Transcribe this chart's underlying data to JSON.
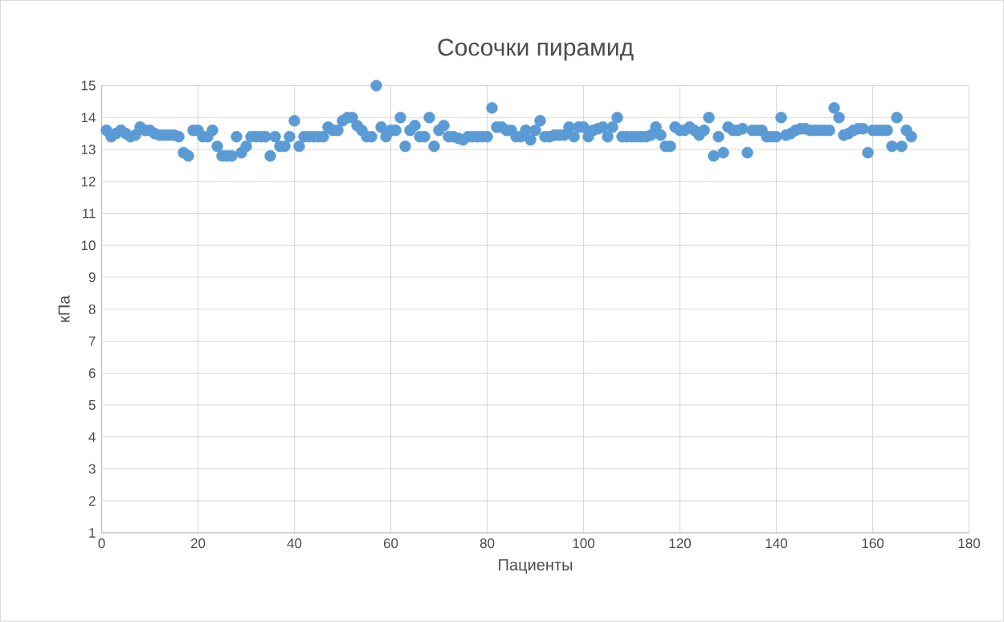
{
  "chart_data": {
    "type": "scatter",
    "title": "Сосочки пирамид",
    "xlabel": "Пациенты",
    "ylabel": "кПа",
    "x": [
      1,
      2,
      3,
      4,
      5,
      6,
      7,
      8,
      9,
      10,
      11,
      12,
      13,
      14,
      15,
      16,
      17,
      18,
      19,
      20,
      21,
      22,
      23,
      24,
      25,
      26,
      27,
      28,
      29,
      30,
      31,
      32,
      33,
      34,
      35,
      36,
      37,
      38,
      39,
      40,
      41,
      42,
      43,
      44,
      45,
      46,
      47,
      48,
      49,
      50,
      51,
      52,
      53,
      54,
      55,
      56,
      57,
      58,
      59,
      60,
      61,
      62,
      63,
      64,
      65,
      66,
      67,
      68,
      69,
      70,
      71,
      72,
      73,
      74,
      75,
      76,
      77,
      78,
      79,
      80,
      81,
      82,
      83,
      84,
      85,
      86,
      87,
      88,
      89,
      90,
      91,
      92,
      93,
      94,
      95,
      96,
      97,
      98,
      99,
      100,
      101,
      102,
      103,
      104,
      105,
      106,
      107,
      108,
      109,
      110,
      111,
      112,
      113,
      114,
      115,
      116,
      117,
      118,
      119,
      120,
      121,
      122,
      123,
      124,
      125,
      126,
      127,
      128,
      129,
      130,
      131,
      132,
      133,
      134,
      135,
      136,
      137,
      138,
      139,
      140,
      141,
      142,
      143,
      144,
      145,
      146,
      147,
      148,
      149,
      150,
      151,
      152,
      153,
      154,
      155,
      156,
      157,
      158,
      159,
      160,
      161,
      162,
      163,
      164,
      165,
      166,
      167,
      168
    ],
    "series": [
      {
        "color": "#5b9bd5",
        "values": [
          13.6,
          13.4,
          13.5,
          13.6,
          13.5,
          13.4,
          13.45,
          13.7,
          13.6,
          13.6,
          13.5,
          13.45,
          13.45,
          13.45,
          13.45,
          13.4,
          12.9,
          12.8,
          13.6,
          13.6,
          13.4,
          13.4,
          13.6,
          13.1,
          12.8,
          12.8,
          12.8,
          13.4,
          12.9,
          13.1,
          13.4,
          13.4,
          13.4,
          13.4,
          12.8,
          13.4,
          13.1,
          13.1,
          13.4,
          13.9,
          13.1,
          13.4,
          13.4,
          13.4,
          13.4,
          13.4,
          13.7,
          13.6,
          13.6,
          13.9,
          14.0,
          14.0,
          13.75,
          13.6,
          13.4,
          13.4,
          15.0,
          13.7,
          13.4,
          13.6,
          13.6,
          14.0,
          13.1,
          13.6,
          13.75,
          13.4,
          13.4,
          14.0,
          13.1,
          13.6,
          13.75,
          13.4,
          13.4,
          13.35,
          13.3,
          13.4,
          13.4,
          13.4,
          13.4,
          13.4,
          14.3,
          13.7,
          13.7,
          13.6,
          13.6,
          13.4,
          13.4,
          13.6,
          13.3,
          13.6,
          13.9,
          13.4,
          13.4,
          13.45,
          13.45,
          13.45,
          13.7,
          13.4,
          13.7,
          13.7,
          13.4,
          13.6,
          13.65,
          13.7,
          13.4,
          13.7,
          14.0,
          13.4,
          13.4,
          13.4,
          13.4,
          13.4,
          13.4,
          13.45,
          13.7,
          13.45,
          13.1,
          13.1,
          13.7,
          13.6,
          13.6,
          13.7,
          13.6,
          13.45,
          13.6,
          14.0,
          12.8,
          13.4,
          12.9,
          13.7,
          13.6,
          13.6,
          13.65,
          12.9,
          13.6,
          13.6,
          13.6,
          13.4,
          13.4,
          13.4,
          14.0,
          13.45,
          13.5,
          13.6,
          13.65,
          13.65,
          13.6,
          13.6,
          13.6,
          13.6,
          13.6,
          14.3,
          14.0,
          13.45,
          13.5,
          13.6,
          13.65,
          13.65,
          12.9,
          13.6,
          13.6,
          13.6,
          13.6,
          13.1,
          14.0,
          13.1,
          13.6,
          13.4
        ]
      }
    ],
    "xlim": [
      0,
      180
    ],
    "xticks": [
      0,
      20,
      40,
      60,
      80,
      100,
      120,
      140,
      160,
      180
    ],
    "ylim": [
      1,
      15
    ],
    "yticks": [
      1,
      2,
      3,
      4,
      5,
      6,
      7,
      8,
      9,
      10,
      11,
      12,
      13,
      14,
      15
    ],
    "grid": true,
    "marker": "circle"
  }
}
